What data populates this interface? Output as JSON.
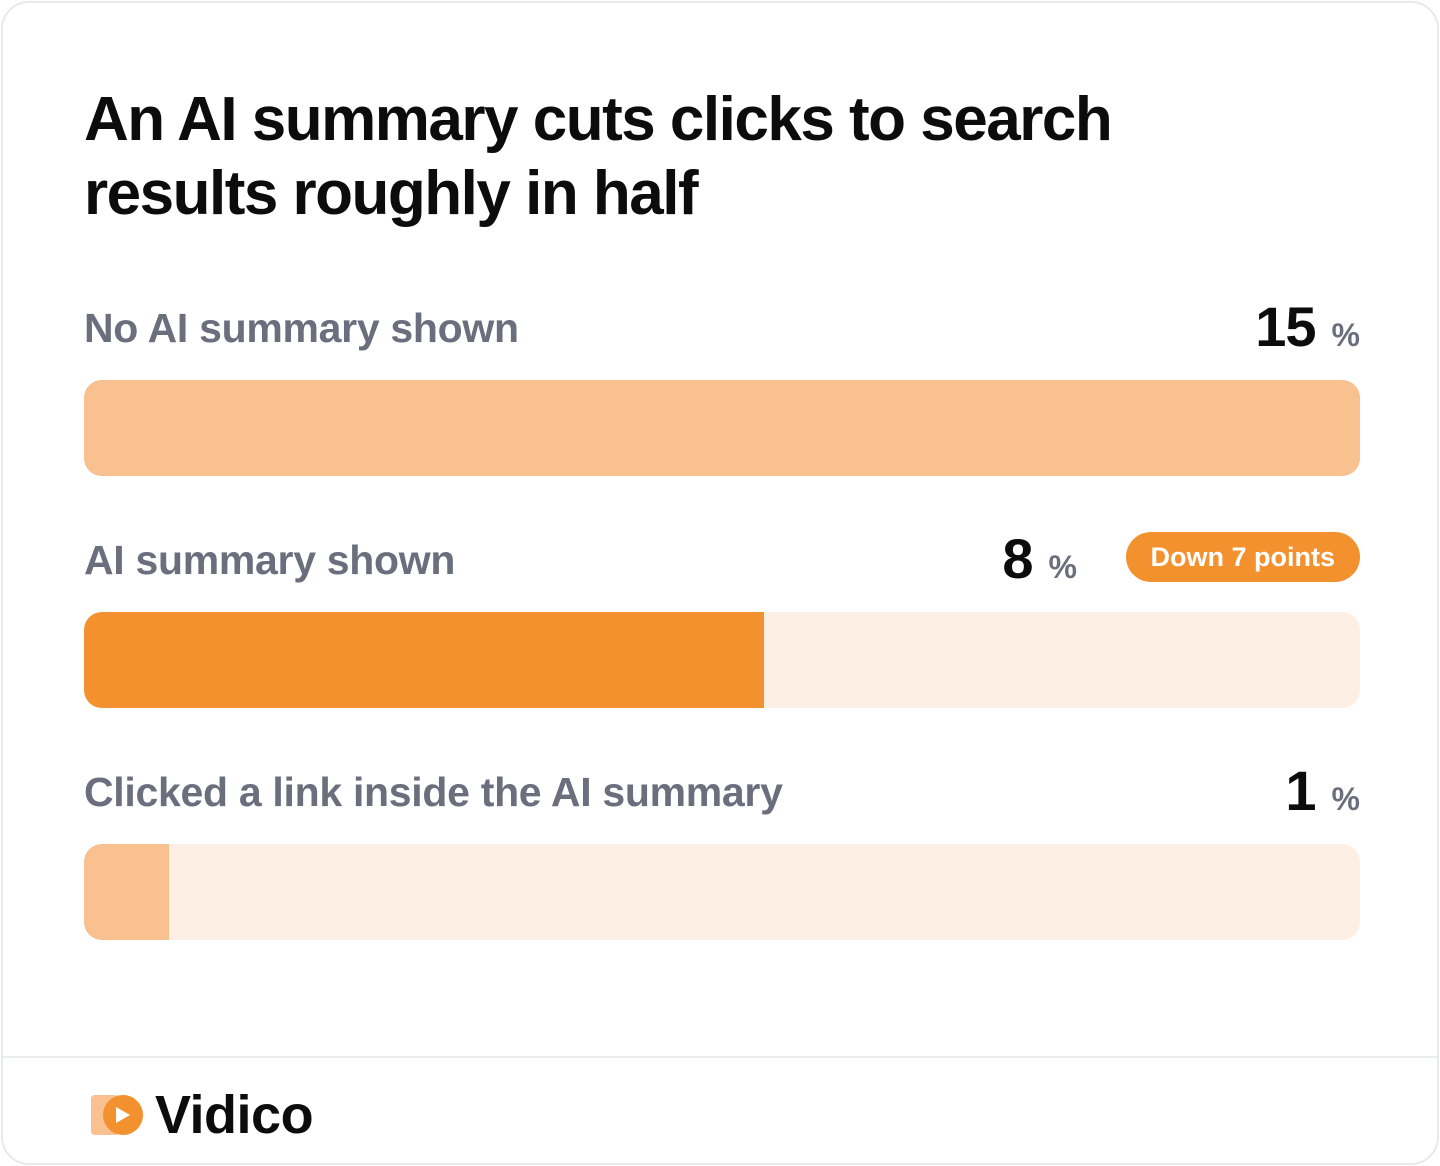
{
  "title": "An AI summary cuts clicks to search results roughly in half",
  "colors": {
    "bar_light": "#f9c190",
    "bar_strong": "#f4912f",
    "track": "#fdefe4",
    "badge": "#f4912f"
  },
  "chart_data": {
    "type": "bar",
    "orientation": "horizontal",
    "title": "An AI summary cuts clicks to search results roughly in half",
    "categories": [
      "No AI summary shown",
      "AI summary shown",
      "Clicked a link inside the AI summary"
    ],
    "values": [
      15,
      8,
      1
    ],
    "unit": "%",
    "xlim": [
      0,
      15
    ],
    "annotations": [
      {
        "category": "AI summary shown",
        "text": "Down 7 points"
      }
    ]
  },
  "rows": [
    {
      "label": "No AI summary shown",
      "value": "15",
      "unit": "%",
      "fraction": 1.0,
      "color": "#f9c190"
    },
    {
      "label": "AI summary shown",
      "value": "8",
      "unit": "%",
      "fraction": 0.5333,
      "color": "#f4912f",
      "badge": "Down 7 points"
    },
    {
      "label": "Clicked a link inside the AI summary",
      "value": "1",
      "unit": "%",
      "fraction": 0.0667,
      "color": "#f9c190"
    }
  ],
  "logo": {
    "text": "Vidico",
    "icon": "vidico-logo-icon"
  }
}
